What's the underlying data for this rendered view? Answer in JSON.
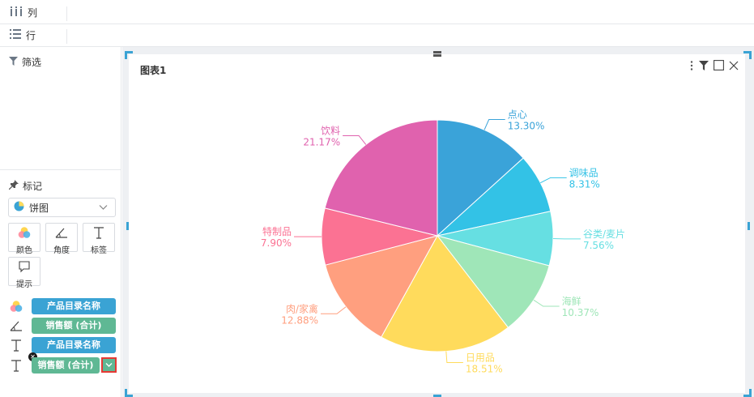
{
  "shelves": {
    "columns_label": "列",
    "rows_label": "行"
  },
  "left_panel": {
    "filter_title": "筛选",
    "marks_title": "标记",
    "mark_type": "饼图",
    "properties": [
      {
        "label": "颜色",
        "icon": "palette-icon"
      },
      {
        "label": "角度",
        "icon": "angle-icon"
      },
      {
        "label": "标签",
        "icon": "text-icon"
      },
      {
        "label": "提示",
        "icon": "tooltip-icon"
      }
    ],
    "fields": [
      {
        "icon": "palette-icon",
        "label": "产品目录名称",
        "color": "#3aa3d4"
      },
      {
        "icon": "angle-icon",
        "label": "销售额 (合计)",
        "color": "#5fb894"
      },
      {
        "icon": "text-icon",
        "label": "产品目录名称",
        "color": "#3aa3d4"
      },
      {
        "icon": "text-icon",
        "label": "销售额 (合计)",
        "color": "#5fb894"
      }
    ]
  },
  "chart_card": {
    "title": "图表1"
  },
  "chart_data": {
    "type": "pie",
    "title": "图表1",
    "slices": [
      {
        "name": "点心",
        "value": 13.3,
        "label": "13.30%",
        "color": "#3aa3d9"
      },
      {
        "name": "调味品",
        "value": 8.31,
        "label": "8.31%",
        "color": "#33c2e6"
      },
      {
        "name": "谷类/麦片",
        "value": 7.56,
        "label": "7.56%",
        "color": "#66dfe2"
      },
      {
        "name": "海鲜",
        "value": 10.37,
        "label": "10.37%",
        "color": "#9fe6b8"
      },
      {
        "name": "日用品",
        "value": 18.51,
        "label": "18.51%",
        "color": "#ffdb5c"
      },
      {
        "name": "肉/家禽",
        "value": 12.88,
        "label": "12.88%",
        "color": "#ff9f7f"
      },
      {
        "name": "特制品",
        "value": 7.9,
        "label": "7.90%",
        "color": "#fb7293"
      },
      {
        "name": "饮料",
        "value": 21.17,
        "label": "21.17%",
        "color": "#e062ae"
      }
    ]
  }
}
